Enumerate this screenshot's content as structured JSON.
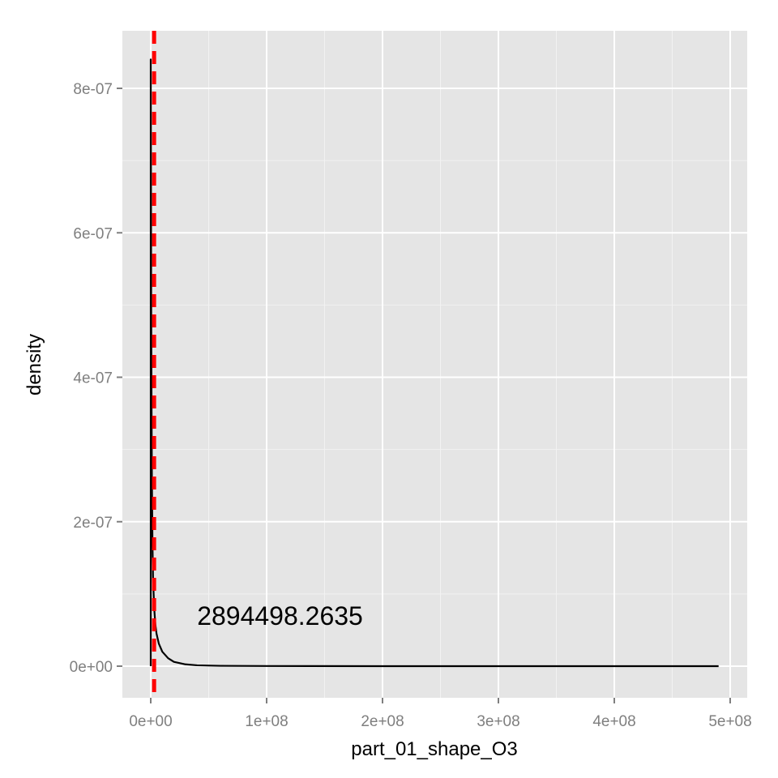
{
  "chart_data": {
    "type": "line",
    "title": "",
    "xlabel": "part_01_shape_O3",
    "ylabel": "density",
    "xlim": [
      -24000000,
      514000000
    ],
    "ylim": [
      -4e-08,
      8.8e-07
    ],
    "x_ticks": [
      {
        "value": 0,
        "label": "0e+00"
      },
      {
        "value": 100000000,
        "label": "1e+08"
      },
      {
        "value": 200000000,
        "label": "2e+08"
      },
      {
        "value": 300000000,
        "label": "3e+08"
      },
      {
        "value": 400000000,
        "label": "4e+08"
      },
      {
        "value": 500000000,
        "label": "5e+08"
      }
    ],
    "y_ticks": [
      {
        "value": 0,
        "label": "0e+00"
      },
      {
        "value": 2e-07,
        "label": "2e-07"
      },
      {
        "value": 4e-07,
        "label": "4e-07"
      },
      {
        "value": 6e-07,
        "label": "6e-07"
      },
      {
        "value": 8e-07,
        "label": "8e-07"
      }
    ],
    "grid": true,
    "series": [
      {
        "color": "#000000",
        "x": [
          0,
          0,
          200000,
          400000,
          700000,
          1000000,
          1500000,
          2000000,
          3000000,
          4000000,
          5000000,
          7000000,
          10000000,
          15000000,
          20000000,
          30000000,
          40000000,
          60000000,
          100000000,
          200000000,
          300000000,
          400000000,
          490000000
        ],
        "y": [
          0,
          8.4e-07,
          6.7e-07,
          5e-07,
          3.6e-07,
          2.6e-07,
          1.7e-07,
          1.2e-07,
          8e-08,
          5.7e-08,
          4.5e-08,
          3.1e-08,
          2e-08,
          1.1e-08,
          6e-09,
          2.5e-09,
          1.2e-09,
          5e-10,
          2e-10,
          0,
          0,
          0,
          0
        ]
      }
    ],
    "vline": {
      "x": 2894498.2635,
      "color": "#ff0000",
      "style": "dashed"
    },
    "annotation": {
      "text": "2894498.2635",
      "x": 40000000,
      "y": 5.7e-08
    }
  }
}
